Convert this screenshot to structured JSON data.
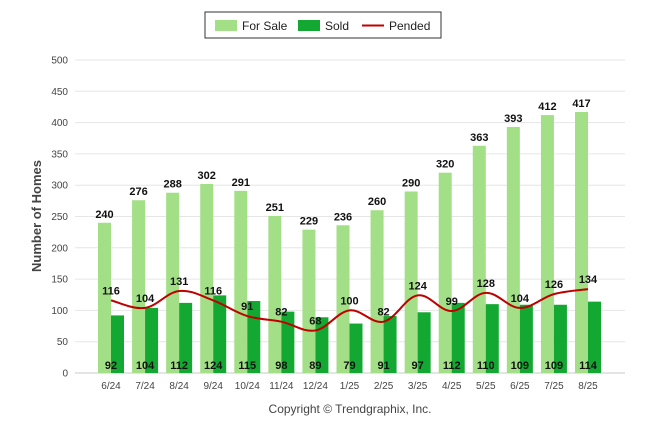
{
  "chart_data": {
    "type": "bar",
    "ylabel": "Number of Homes",
    "ylim": [
      0,
      500
    ],
    "yticks": [
      0,
      50,
      100,
      150,
      200,
      250,
      300,
      350,
      400,
      450,
      500
    ],
    "categories": [
      "6/24",
      "7/24",
      "8/24",
      "9/24",
      "10/24",
      "11/24",
      "12/24",
      "1/25",
      "2/25",
      "3/25",
      "4/25",
      "5/25",
      "6/25",
      "7/25",
      "8/25"
    ],
    "series": [
      {
        "name": "For Sale",
        "kind": "bar",
        "color": "#a3df86",
        "values": [
          240,
          276,
          288,
          302,
          291,
          251,
          229,
          236,
          260,
          290,
          320,
          363,
          393,
          412,
          417
        ]
      },
      {
        "name": "Sold",
        "kind": "bar",
        "color": "#13a832",
        "values": [
          92,
          104,
          112,
          124,
          115,
          98,
          89,
          79,
          91,
          97,
          112,
          110,
          109,
          109,
          114
        ]
      },
      {
        "name": "Pended",
        "kind": "line",
        "color": "#c00000",
        "values": [
          116,
          104,
          131,
          116,
          91,
          82,
          68,
          100,
          82,
          124,
          99,
          128,
          104,
          126,
          134
        ]
      }
    ],
    "legend_position": "top-center",
    "grid": true
  },
  "footer": {
    "copyright": "Copyright © Trendgraphix, Inc."
  }
}
